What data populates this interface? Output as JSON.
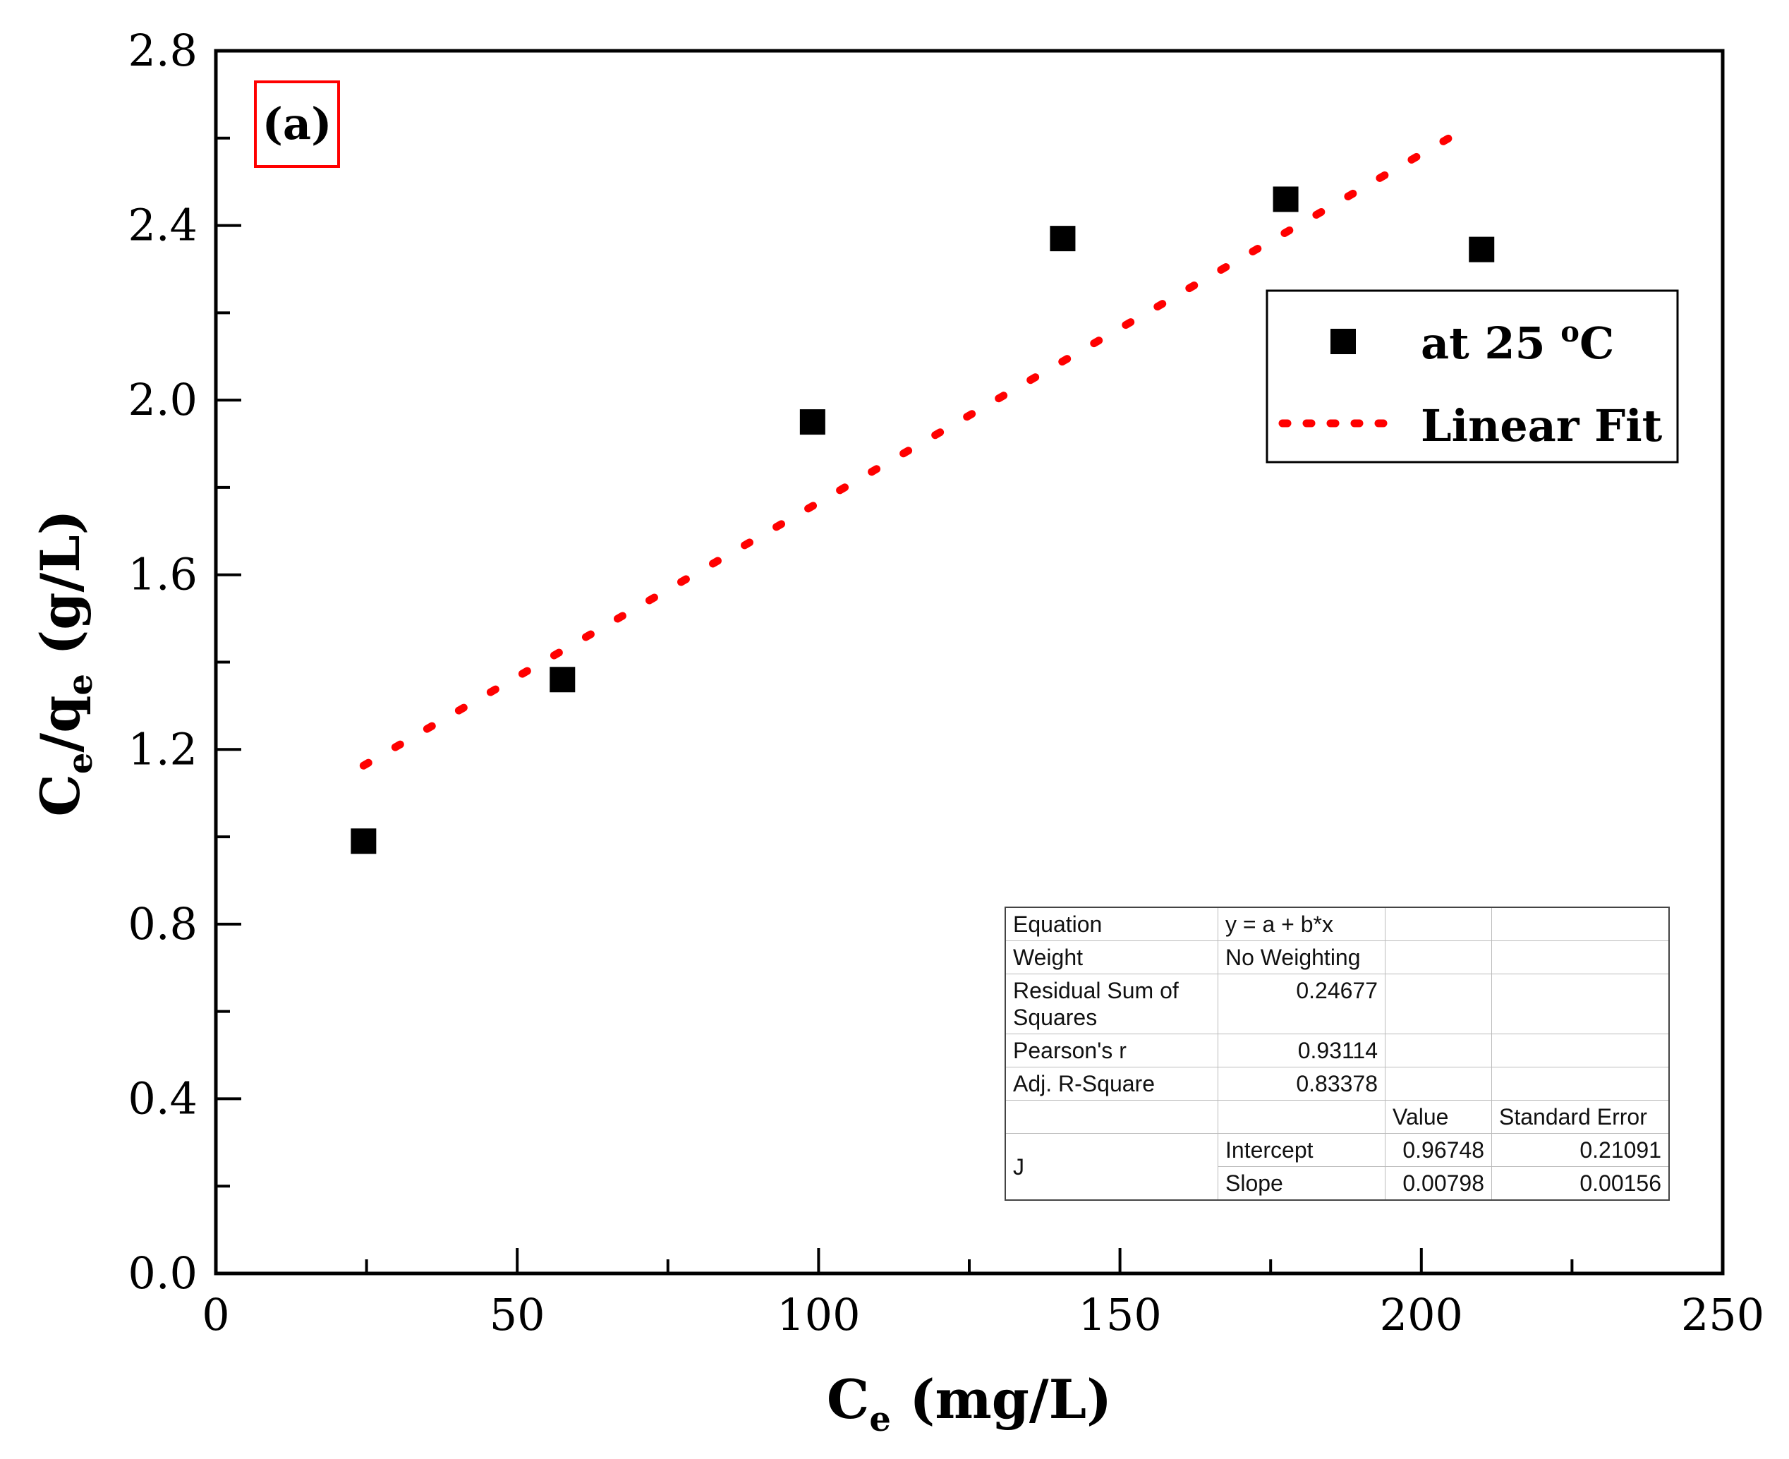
{
  "chart_data": {
    "type": "scatter",
    "panel_label": "(a)",
    "xlabel": {
      "main": "C",
      "sub": "e",
      "rest": " (mg/L)"
    },
    "ylabel": {
      "c": "C",
      "sub1": "e",
      "slash": "/q",
      "sub2": "e",
      "rest": " (g/L)"
    },
    "xlim": [
      0,
      250
    ],
    "ylim": [
      0,
      2.8
    ],
    "x_ticks": [
      0,
      50,
      100,
      150,
      200,
      250
    ],
    "x_tick_labels": [
      "0",
      "50",
      "100",
      "150",
      "200",
      "250"
    ],
    "y_ticks": [
      0,
      0.4,
      0.8,
      1.2,
      1.6,
      2.0,
      2.4,
      2.8
    ],
    "y_tick_labels": [
      "0.0",
      "0.4",
      "0.8",
      "1.2",
      "1.6",
      "2.0",
      "2.4",
      "2.8"
    ],
    "grid": false,
    "legend_position": "top-right",
    "series": [
      {
        "name": "at 25 oC",
        "legend_main": "at 25 ",
        "legend_sup": "o",
        "legend_unit": "C",
        "marker": "square",
        "color": "#000000",
        "x": [
          24.5,
          57.5,
          99.0,
          140.5,
          177.5,
          210.0
        ],
        "y": [
          0.99,
          1.36,
          1.95,
          2.37,
          2.46,
          2.345
        ]
      },
      {
        "name": "Linear Fit",
        "style": "dotted",
        "color": "#ff0000",
        "x": [
          24.5,
          204.5
        ],
        "intercept": 0.96748,
        "slope": 0.00798
      }
    ],
    "fit_table": {
      "equation_label": "Equation",
      "equation_value": "y = a + b*x",
      "weight_label": "Weight",
      "weight_value": "No Weighting",
      "rss_label": "Residual Sum of Squares",
      "rss_value": "0.24677",
      "pearson_label": "Pearson's r",
      "pearson_value": "0.93114",
      "adj_r2_label": "Adj. R-Square",
      "adj_r2_value": "0.83378",
      "value_header": "Value",
      "stderr_header": "Standard Error",
      "group_label": "J",
      "intercept_label": "Intercept",
      "intercept_value": "0.96748",
      "intercept_err": "0.21091",
      "slope_label": "Slope",
      "slope_value": "0.00798",
      "slope_err": "0.00156"
    }
  }
}
